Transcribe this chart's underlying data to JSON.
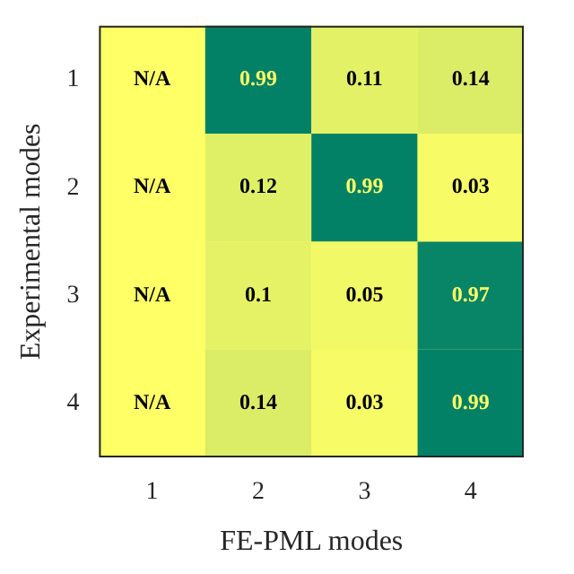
{
  "chart_data": {
    "type": "heatmap",
    "xlabel": "FE-PML modes",
    "ylabel": "Experimental modes",
    "categories": [
      "1",
      "2",
      "3",
      "4"
    ],
    "y_categories": [
      "1",
      "2",
      "3",
      "4"
    ],
    "cells": [
      [
        null,
        0.99,
        0.11,
        0.14
      ],
      [
        null,
        0.12,
        0.99,
        0.03
      ],
      [
        null,
        0.1,
        0.05,
        0.97
      ],
      [
        null,
        0.14,
        0.03,
        0.99
      ]
    ],
    "cell_labels": [
      [
        "N/A",
        "0.99",
        "0.11",
        "0.14"
      ],
      [
        "N/A",
        "0.12",
        "0.99",
        "0.03"
      ],
      [
        "N/A",
        "0.1",
        "0.05",
        "0.97"
      ],
      [
        "N/A",
        "0.14",
        "0.03",
        "0.99"
      ]
    ],
    "colors": [
      "#ffff66",
      "#008066"
    ],
    "grid": false
  }
}
